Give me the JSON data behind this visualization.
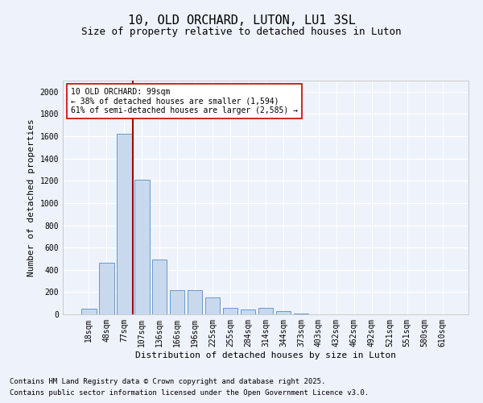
{
  "title": "10, OLD ORCHARD, LUTON, LU1 3SL",
  "subtitle": "Size of property relative to detached houses in Luton",
  "xlabel": "Distribution of detached houses by size in Luton",
  "ylabel": "Number of detached properties",
  "categories": [
    "18sqm",
    "48sqm",
    "77sqm",
    "107sqm",
    "136sqm",
    "166sqm",
    "196sqm",
    "225sqm",
    "255sqm",
    "284sqm",
    "314sqm",
    "344sqm",
    "373sqm",
    "403sqm",
    "432sqm",
    "462sqm",
    "492sqm",
    "521sqm",
    "551sqm",
    "580sqm",
    "610sqm"
  ],
  "values": [
    50,
    460,
    1620,
    1210,
    490,
    220,
    220,
    155,
    55,
    40,
    55,
    30,
    10,
    0,
    0,
    0,
    0,
    0,
    0,
    0,
    0
  ],
  "bar_color": "#c8d9ee",
  "bar_edge_color": "#6699cc",
  "vline_color": "#aa0000",
  "vline_x": 2.5,
  "annotation_text": "10 OLD ORCHARD: 99sqm\n← 38% of detached houses are smaller (1,594)\n61% of semi-detached houses are larger (2,585) →",
  "annotation_box_color": "#ffffff",
  "annotation_box_edge": "#cc0000",
  "ylim": [
    0,
    2100
  ],
  "yticks": [
    0,
    200,
    400,
    600,
    800,
    1000,
    1200,
    1400,
    1600,
    1800,
    2000
  ],
  "footer1": "Contains HM Land Registry data © Crown copyright and database right 2025.",
  "footer2": "Contains public sector information licensed under the Open Government Licence v3.0.",
  "background_color": "#eef2fa",
  "grid_color": "#ffffff",
  "title_fontsize": 11,
  "subtitle_fontsize": 9,
  "tick_fontsize": 7,
  "ylabel_fontsize": 8,
  "xlabel_fontsize": 8,
  "footer_fontsize": 6.5
}
